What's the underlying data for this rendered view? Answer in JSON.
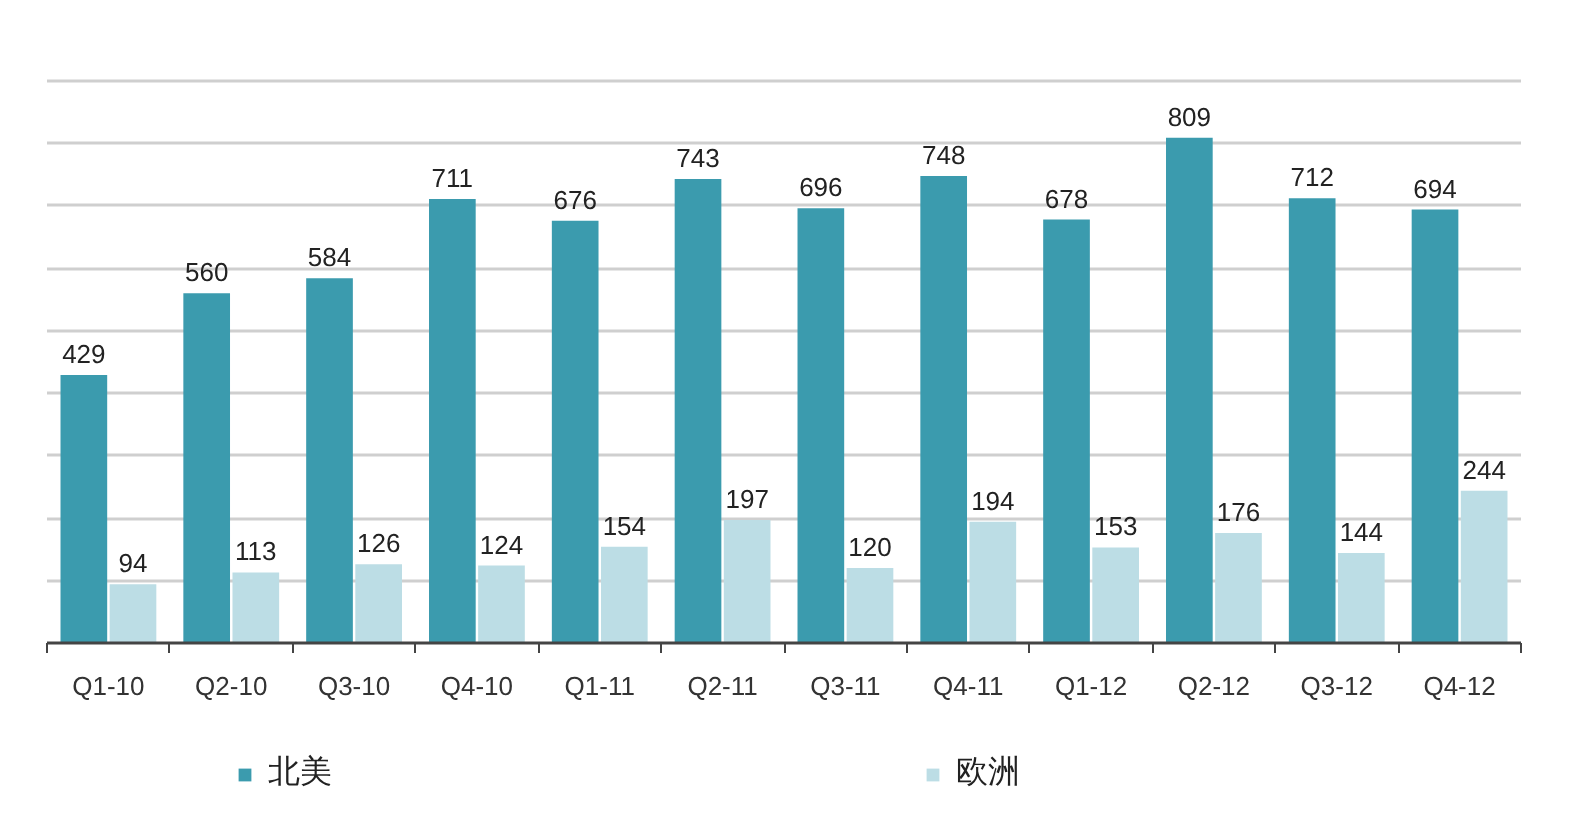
{
  "chart_data": {
    "type": "bar",
    "categories": [
      "Q1-10",
      "Q2-10",
      "Q3-10",
      "Q4-10",
      "Q1-11",
      "Q2-11",
      "Q3-11",
      "Q4-11",
      "Q1-12",
      "Q2-12",
      "Q3-12",
      "Q4-12"
    ],
    "series": [
      {
        "name": "北美",
        "color": "#3b9bae",
        "values": [
          429,
          560,
          584,
          711,
          676,
          743,
          696,
          748,
          678,
          809,
          712,
          694
        ]
      },
      {
        "name": "欧洲",
        "color": "#bcdde5",
        "values": [
          94,
          113,
          126,
          124,
          154,
          197,
          120,
          194,
          153,
          176,
          144,
          244
        ]
      }
    ],
    "yticks": [
      {
        "value": 100,
        "label": null
      },
      {
        "value": 200,
        "label": null
      },
      {
        "value": 300,
        "label": null
      },
      {
        "value": 400,
        "label": null
      },
      {
        "value": 500,
        "label": null
      },
      {
        "value": 600,
        "label": null
      },
      {
        "value": 700,
        "label": null
      },
      {
        "value": 800,
        "label": null
      },
      {
        "value": 900,
        "label": null
      }
    ],
    "tick_labels": "x",
    "grid": "y",
    "legend": "bottom",
    "data_labels": true
  }
}
